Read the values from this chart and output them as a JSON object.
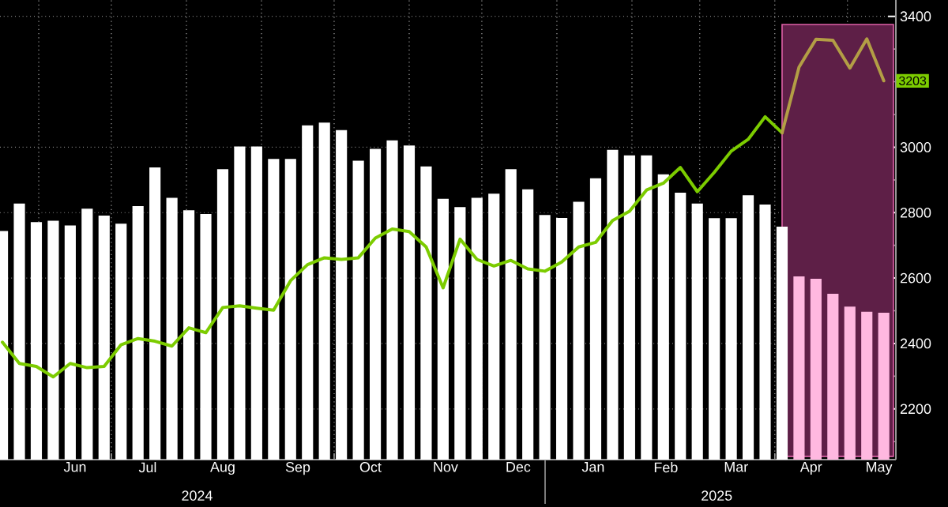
{
  "chart_data": {
    "type": "bar",
    "x": [
      "2024-05-17",
      "2024-05-24",
      "2024-05-31",
      "2024-06-07",
      "2024-06-14",
      "2024-06-21",
      "2024-06-28",
      "2024-07-05",
      "2024-07-12",
      "2024-07-19",
      "2024-07-26",
      "2024-08-02",
      "2024-08-09",
      "2024-08-16",
      "2024-08-23",
      "2024-08-30",
      "2024-09-06",
      "2024-09-13",
      "2024-09-20",
      "2024-09-27",
      "2024-10-04",
      "2024-10-11",
      "2024-10-18",
      "2024-10-25",
      "2024-11-01",
      "2024-11-08",
      "2024-11-15",
      "2024-11-22",
      "2024-11-29",
      "2024-12-06",
      "2024-12-13",
      "2024-12-20",
      "2024-12-27",
      "2025-01-03",
      "2025-01-10",
      "2025-01-17",
      "2025-01-24",
      "2025-01-31",
      "2025-02-07",
      "2025-02-14",
      "2025-02-21",
      "2025-02-28",
      "2025-03-07",
      "2025-03-14",
      "2025-03-21",
      "2025-03-28",
      "2025-04-04",
      "2025-04-11",
      "2025-04-18",
      "2025-04-25",
      "2025-05-02",
      "2025-05-09",
      "2025-05-16"
    ],
    "series": [
      {
        "colors": [
          "#ffffff",
          "#ffffff",
          "#ffffff",
          "#ffffff",
          "#ffffff",
          "#ffffff",
          "#ffffff",
          "#ffffff",
          "#ffffff",
          "#ffffff",
          "#ffffff",
          "#ffffff",
          "#ffffff",
          "#ffffff",
          "#ffffff",
          "#ffffff",
          "#ffffff",
          "#ffffff",
          "#ffffff",
          "#ffffff",
          "#ffffff",
          "#ffffff",
          "#ffffff",
          "#ffffff",
          "#ffffff",
          "#ffffff",
          "#ffffff",
          "#ffffff",
          "#ffffff",
          "#ffffff",
          "#ffffff",
          "#ffffff",
          "#ffffff",
          "#ffffff",
          "#ffffff",
          "#ffffff",
          "#ffffff",
          "#ffffff",
          "#ffffff",
          "#ffffff",
          "#ffffff",
          "#ffffff",
          "#ffffff",
          "#ffffff",
          "#ffffff",
          "#ffffff",
          "#ffffff",
          "#ffb8e0",
          "#ffb8e0",
          "#ffb8e0",
          "#ffb8e0",
          "#ffb8e0",
          "#ffb8e0"
        ],
        "values": [
          2744,
          2828,
          2771,
          2775,
          2761,
          2812,
          2791,
          2766,
          2820,
          2938,
          2845,
          2807,
          2796,
          2933,
          3002,
          3002,
          2964,
          2964,
          3067,
          3075,
          3052,
          2959,
          2995,
          3021,
          3005,
          2941,
          2842,
          2817,
          2845,
          2858,
          2933,
          2871,
          2793,
          2784,
          2833,
          2905,
          2992,
          2975,
          2975,
          2917,
          2861,
          2828,
          2783,
          2783,
          2853,
          2825,
          2757,
          2605,
          2598,
          2552,
          2513,
          2497,
          2494
        ]
      },
      {
        "type": "line",
        "color": "#7ccc00",
        "values": [
          2404,
          2339,
          2330,
          2298,
          2339,
          2326,
          2330,
          2396,
          2415,
          2407,
          2392,
          2448,
          2433,
          2510,
          2515,
          2508,
          2502,
          2592,
          2641,
          2662,
          2657,
          2662,
          2722,
          2750,
          2742,
          2695,
          2570,
          2719,
          2657,
          2637,
          2654,
          2628,
          2621,
          2649,
          2695,
          2709,
          2776,
          2804,
          2869,
          2890,
          2938,
          2864,
          2923,
          2988,
          3024,
          3093,
          3044,
          null,
          null,
          null,
          null,
          null,
          null
        ]
      },
      {
        "type": "line",
        "color": "#b39e45",
        "values": [
          null,
          null,
          null,
          null,
          null,
          null,
          null,
          null,
          null,
          null,
          null,
          null,
          null,
          null,
          null,
          null,
          null,
          null,
          null,
          null,
          null,
          null,
          null,
          null,
          null,
          null,
          null,
          null,
          null,
          null,
          null,
          null,
          null,
          null,
          null,
          null,
          null,
          null,
          null,
          null,
          null,
          null,
          null,
          null,
          null,
          null,
          3044,
          3245,
          3330,
          3327,
          3242,
          3331,
          3203
        ],
        "value_labels": [
          null,
          null,
          null,
          null,
          null,
          null,
          null,
          null,
          null,
          null,
          null,
          null,
          null,
          null,
          null,
          null,
          null,
          null,
          null,
          null,
          null,
          null,
          null,
          null,
          null,
          null,
          null,
          null,
          null,
          null,
          null,
          null,
          null,
          null,
          null,
          null,
          null,
          null,
          null,
          null,
          null,
          null,
          null,
          null,
          null,
          null,
          null,
          null,
          null,
          null,
          null,
          null,
          "3203"
        ]
      }
    ],
    "xlim": [
      "2024-05-16",
      "2025-05-21"
    ],
    "xticks": [
      {
        "value": "2024-06-01",
        "label": null
      },
      {
        "value": "2024-06-16",
        "label": "Jun"
      },
      {
        "value": "2024-07-01",
        "label": null
      },
      {
        "value": "2024-07-16",
        "label": "Jul"
      },
      {
        "value": "2024-08-01",
        "label": null
      },
      {
        "value": "2024-08-16",
        "label": "Aug"
      },
      {
        "value": "2024-09-01",
        "label": null
      },
      {
        "value": "2024-09-16",
        "label": "Sep"
      },
      {
        "value": "2024-10-01",
        "label": null
      },
      {
        "value": "2024-10-16",
        "label": "Oct"
      },
      {
        "value": "2024-11-01",
        "label": null
      },
      {
        "value": "2024-11-16",
        "label": "Nov"
      },
      {
        "value": "2024-12-01",
        "label": null
      },
      {
        "value": "2024-12-16",
        "label": "Dec"
      },
      {
        "value": "2025-01-01",
        "label": null
      },
      {
        "value": "2025-01-16",
        "label": "Jan"
      },
      {
        "value": "2025-02-01",
        "label": null
      },
      {
        "value": "2025-02-15",
        "label": "Feb"
      },
      {
        "value": "2025-03-01",
        "label": null
      },
      {
        "value": "2025-03-16",
        "label": "Mar"
      },
      {
        "value": "2025-04-01",
        "label": null
      },
      {
        "value": "2025-04-16",
        "label": "Apr"
      },
      {
        "value": "2025-05-01",
        "label": null
      },
      {
        "value": "2025-05-14",
        "label": "May"
      }
    ],
    "ylim": [
      2045,
      3450
    ],
    "yticks": [
      {
        "value": 2100,
        "label": null
      },
      2200,
      {
        "value": 2300,
        "label": null
      },
      2400,
      {
        "value": 2500,
        "label": null
      },
      2600,
      {
        "value": 2700,
        "label": null
      },
      2800,
      {
        "value": 2900,
        "label": null
      },
      3000,
      {
        "value": 3100,
        "label": null
      },
      {
        "value": 3200,
        "label": null
      },
      {
        "value": 3300,
        "label": null
      },
      3400
    ],
    "bands": [
      {
        "axis": "x",
        "from": "2025-04-04",
        "to": "2025-05-21",
        "color": "#5e1f47"
      }
    ],
    "annotations": [
      "2024",
      "2025"
    ],
    "grid": true
  }
}
